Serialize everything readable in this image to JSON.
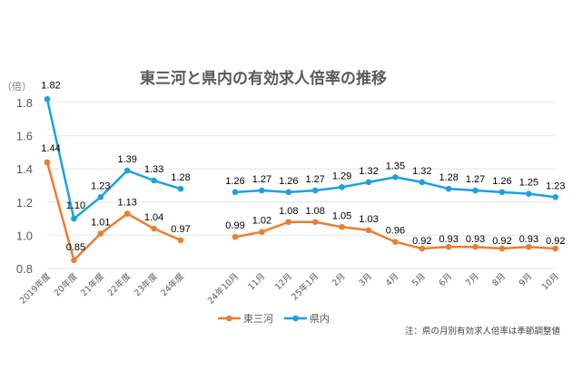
{
  "chart_data": {
    "type": "line",
    "title": "東三河と県内の有効求人倍率の推移",
    "ylabel": "（倍）",
    "xlabel": "",
    "ylim": [
      0.8,
      1.8
    ],
    "yticks": [
      "0.8",
      "1.0",
      "1.2",
      "1.4",
      "1.6",
      "1.8"
    ],
    "grid": true,
    "legend_position": "bottom-left",
    "note": "注：県の月別有効求人倍率は季節調整値",
    "groups": [
      {
        "name": "annual",
        "categories": [
          "2019年度",
          "20年度",
          "21年度",
          "22年度",
          "23年度",
          "24年度"
        ],
        "series": [
          {
            "name": "東三河",
            "color": "#ED7D31",
            "values": [
              1.44,
              0.85,
              1.01,
              1.13,
              1.04,
              0.97
            ],
            "labels": [
              "1.44",
              "0.85",
              "1.01",
              "1.13",
              "1.04",
              "0.97"
            ]
          },
          {
            "name": "県内",
            "color": "#1BA1E2",
            "values": [
              1.82,
              1.1,
              1.23,
              1.39,
              1.33,
              1.28
            ],
            "labels": [
              "1.82",
              "1.10",
              "1.23",
              "1.39",
              "1.33",
              "1.28"
            ]
          }
        ]
      },
      {
        "name": "monthly",
        "categories": [
          "24年10月",
          "11月",
          "12月",
          "25年1月",
          "2月",
          "3月",
          "4月",
          "5月",
          "6月",
          "7月",
          "8月",
          "9月",
          "10月"
        ],
        "series": [
          {
            "name": "東三河",
            "color": "#ED7D31",
            "values": [
              0.99,
              1.02,
              1.08,
              1.08,
              1.05,
              1.03,
              0.96,
              0.92,
              0.93,
              0.93,
              0.92,
              0.93,
              0.92
            ],
            "labels": [
              "0.99",
              "1.02",
              "1.08",
              "1.08",
              "1.05",
              "1.03",
              "0.96",
              "0.92",
              "0.93",
              "0.93",
              "0.92",
              "0.93",
              "0.92"
            ]
          },
          {
            "name": "県内",
            "color": "#1BA1E2",
            "values": [
              1.26,
              1.27,
              1.26,
              1.27,
              1.29,
              1.32,
              1.35,
              1.32,
              1.28,
              1.27,
              1.26,
              1.25,
              1.23
            ],
            "labels": [
              "1.26",
              "1.27",
              "1.26",
              "1.27",
              "1.29",
              "1.32",
              "1.35",
              "1.32",
              "1.28",
              "1.27",
              "1.26",
              "1.25",
              "1.23"
            ]
          }
        ]
      }
    ],
    "legend": [
      {
        "name": "東三河",
        "color": "#ED7D31"
      },
      {
        "name": "県内",
        "color": "#1BA1E2"
      }
    ]
  }
}
